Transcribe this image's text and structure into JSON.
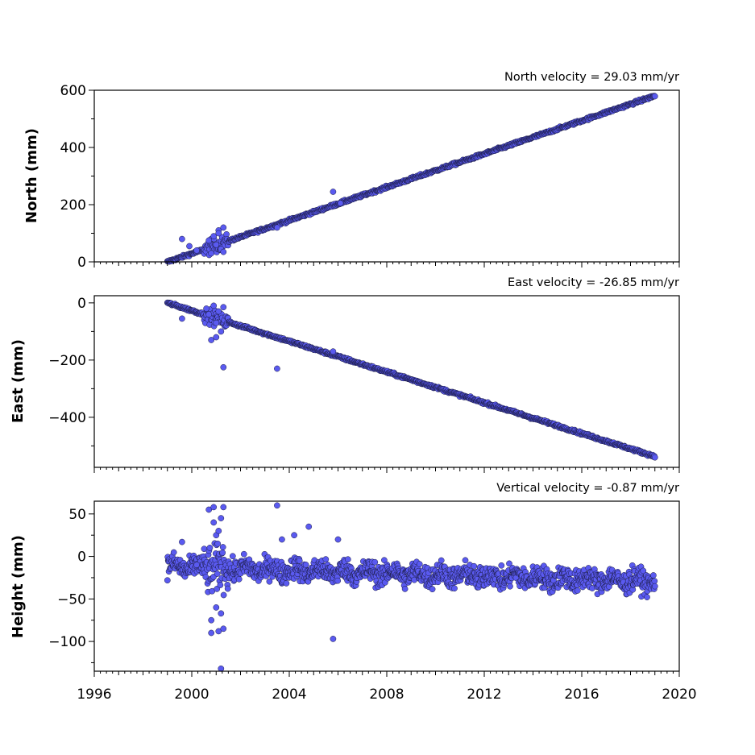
{
  "chart_data": {
    "type": "scatter",
    "shared_x": {
      "xlim": [
        1996,
        2020
      ],
      "major_ticks": [
        1996,
        2000,
        2004,
        2008,
        2012,
        2016,
        2020
      ],
      "tick_labels": [
        "1996",
        "2000",
        "2004",
        "2008",
        "2012",
        "2016",
        "2020"
      ],
      "minor_tick_interval_years": 0.25,
      "data_start": 1999.0,
      "data_end": 2019.0
    },
    "marker_color": "#5a5af0",
    "marker_edge_color": "#1a1a40",
    "panels": [
      {
        "key": "north",
        "title": "North velocity = 29.03 mm/yr",
        "ylabel": "North (mm)",
        "ylim": [
          0,
          600
        ],
        "ticks": [
          0,
          200,
          400,
          600
        ],
        "tick_labels": [
          "0",
          "200",
          "400",
          "600"
        ],
        "trend": {
          "slope_mm_per_yr": 29.03,
          "value_at_start": 0
        },
        "outliers": [
          {
            "x": 1999.6,
            "y": 80
          },
          {
            "x": 1999.9,
            "y": 55
          },
          {
            "x": 2000.2,
            "y": 40
          },
          {
            "x": 2000.7,
            "y": 75
          },
          {
            "x": 2000.8,
            "y": 30
          },
          {
            "x": 2000.9,
            "y": 90
          },
          {
            "x": 2001.0,
            "y": 60
          },
          {
            "x": 2001.1,
            "y": 110
          },
          {
            "x": 2001.2,
            "y": 45
          },
          {
            "x": 2001.3,
            "y": 120
          },
          {
            "x": 2001.3,
            "y": 35
          },
          {
            "x": 2001.1,
            "y": 100
          },
          {
            "x": 2003.5,
            "y": 120
          },
          {
            "x": 2005.8,
            "y": 245
          },
          {
            "x": 2006.1,
            "y": 205
          }
        ]
      },
      {
        "key": "east",
        "title": "East velocity = -26.85 mm/yr",
        "ylabel": "East (mm)",
        "ylim": [
          -575,
          25
        ],
        "ticks": [
          0,
          -200,
          -400
        ],
        "tick_labels": [
          "0",
          "−200",
          "−400"
        ],
        "trend": {
          "slope_mm_per_yr": -26.85,
          "value_at_start": 0
        },
        "outliers": [
          {
            "x": 1999.6,
            "y": -55
          },
          {
            "x": 2000.6,
            "y": -20
          },
          {
            "x": 2000.7,
            "y": -40
          },
          {
            "x": 2000.8,
            "y": -130
          },
          {
            "x": 2000.9,
            "y": -10
          },
          {
            "x": 2001.0,
            "y": -70
          },
          {
            "x": 2001.0,
            "y": -120
          },
          {
            "x": 2001.1,
            "y": -30
          },
          {
            "x": 2001.2,
            "y": -100
          },
          {
            "x": 2001.3,
            "y": -15
          },
          {
            "x": 2001.3,
            "y": -225
          },
          {
            "x": 2003.5,
            "y": -230
          },
          {
            "x": 2005.8,
            "y": -170
          }
        ]
      },
      {
        "key": "height",
        "title": "Vertical velocity = -0.87 mm/yr",
        "ylabel": "Height (mm)",
        "ylim": [
          -135,
          65
        ],
        "ticks": [
          50,
          0,
          -50,
          -100
        ],
        "tick_labels": [
          "50",
          "0",
          "−50",
          "−100"
        ],
        "trend": {
          "slope_mm_per_yr": -0.87,
          "value_at_start": -12
        },
        "outliers": [
          {
            "x": 1999.6,
            "y": 17
          },
          {
            "x": 2000.2,
            "y": -10
          },
          {
            "x": 2000.7,
            "y": 55
          },
          {
            "x": 2000.8,
            "y": -90
          },
          {
            "x": 2000.8,
            "y": -75
          },
          {
            "x": 2000.9,
            "y": 58
          },
          {
            "x": 2000.9,
            "y": 40
          },
          {
            "x": 2001.0,
            "y": -60
          },
          {
            "x": 2001.0,
            "y": 25
          },
          {
            "x": 2001.1,
            "y": -88
          },
          {
            "x": 2001.1,
            "y": 30
          },
          {
            "x": 2001.2,
            "y": -67
          },
          {
            "x": 2001.2,
            "y": 45
          },
          {
            "x": 2001.3,
            "y": 58
          },
          {
            "x": 2001.3,
            "y": -85
          },
          {
            "x": 2001.2,
            "y": -132
          },
          {
            "x": 2003.5,
            "y": 60
          },
          {
            "x": 2003.7,
            "y": 20
          },
          {
            "x": 2004.2,
            "y": 25
          },
          {
            "x": 2004.8,
            "y": 35
          },
          {
            "x": 2005.8,
            "y": -97
          },
          {
            "x": 2006.0,
            "y": 20
          }
        ]
      }
    ]
  }
}
